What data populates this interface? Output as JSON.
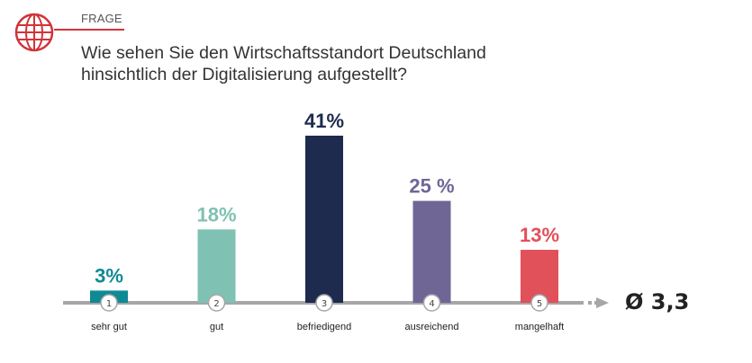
{
  "header": {
    "tag": "FRAGE",
    "question_lines": [
      "Wie sehen Sie den Wirtschaftsstandort Deutschland",
      "hinsichtlich der Digitalisierung aufgestellt?"
    ]
  },
  "colors": {
    "accent": "#d0343a",
    "axis": "#a6a6a6"
  },
  "icon": "globe-icon",
  "chart_data": {
    "type": "bar",
    "title": "",
    "xlabel": "",
    "ylabel": "",
    "ylim": [
      0,
      41
    ],
    "categories": [
      "sehr gut",
      "gut",
      "befriedigend",
      "ausreichend",
      "mangelhaft"
    ],
    "ranks": [
      "1",
      "2",
      "3",
      "4",
      "5"
    ],
    "values": [
      3,
      18,
      41,
      25,
      13
    ],
    "value_labels": [
      "3%",
      "18%",
      "41%",
      "25 %",
      "13%"
    ],
    "colors": [
      "#0f8a94",
      "#7fc1b2",
      "#1e2b4e",
      "#6f6696",
      "#e0515a"
    ],
    "average_label": "Ø 3,3"
  }
}
